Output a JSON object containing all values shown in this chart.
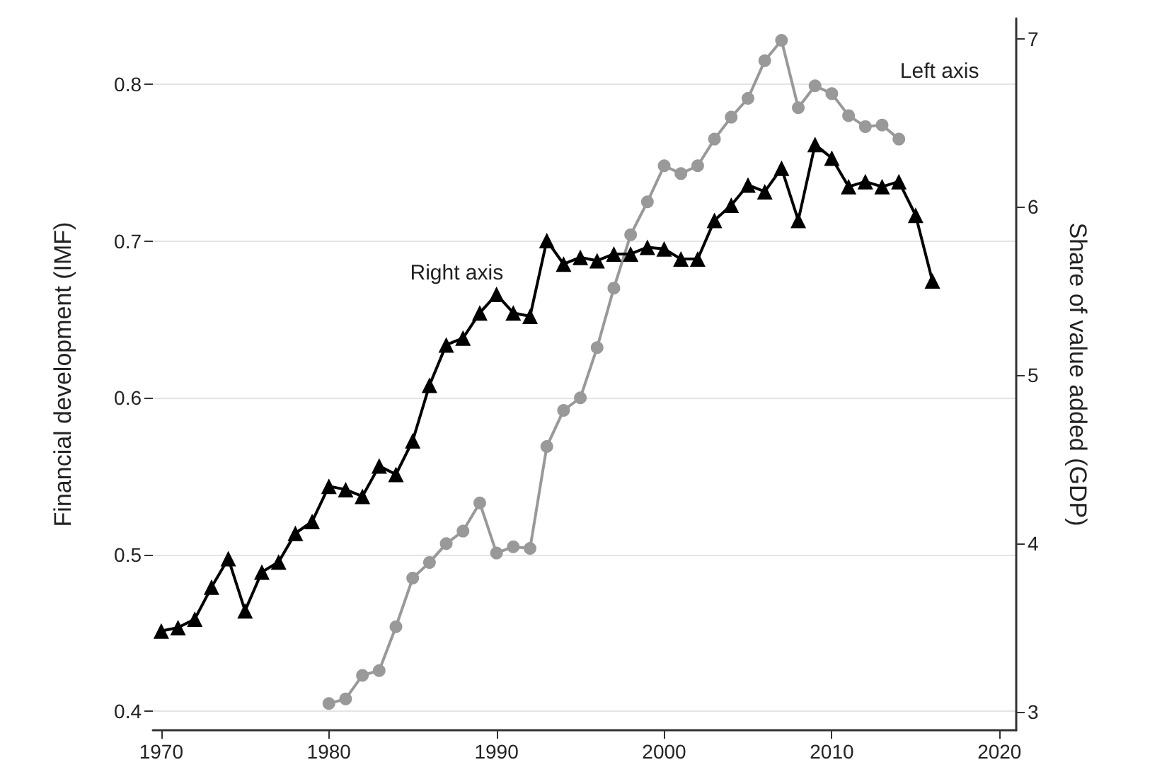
{
  "chart_data": {
    "type": "line",
    "ylabel": "Financial development (IMF)",
    "y2label": "Share of value added (GDP)",
    "annotations": [
      "Left axis",
      "Right axis"
    ],
    "xlim": [
      1969.5,
      2021
    ],
    "xticks": [
      1970,
      1980,
      1990,
      2000,
      2010,
      2020
    ],
    "ylim": [
      0.388,
      0.842
    ],
    "yticks": [
      0.4,
      0.5,
      0.6,
      0.7,
      0.8
    ],
    "y2lim": [
      2.89,
      7.12
    ],
    "y2ticks": [
      3,
      4,
      5,
      6,
      7
    ],
    "grid": "y",
    "series": [
      {
        "color": "#999999",
        "marker": "circle",
        "x": [
          1980,
          1981,
          1982,
          1983,
          1984,
          1985,
          1986,
          1987,
          1988,
          1989,
          1990,
          1991,
          1992,
          1993,
          1994,
          1995,
          1996,
          1997,
          1998,
          1999,
          2000,
          2001,
          2002,
          2003,
          2004,
          2005,
          2006,
          2007,
          2008,
          2009,
          2010,
          2011,
          2012,
          2013,
          2014
        ],
        "values": [
          0.405,
          0.408,
          0.423,
          0.426,
          0.454,
          0.485,
          0.495,
          0.507,
          0.515,
          0.533,
          0.501,
          0.505,
          0.504,
          0.569,
          0.592,
          0.6,
          0.632,
          0.67,
          0.704,
          0.725,
          0.748,
          0.743,
          0.748,
          0.765,
          0.779,
          0.791,
          0.815,
          0.828,
          0.785,
          0.799,
          0.794,
          0.78,
          0.773,
          0.774,
          0.765
        ]
      },
      {
        "color": "#000000",
        "marker": "triangle",
        "axis": "y2",
        "x": [
          1970,
          1971,
          1972,
          1973,
          1974,
          1975,
          1976,
          1977,
          1978,
          1979,
          1980,
          1981,
          1982,
          1983,
          1984,
          1985,
          1986,
          1987,
          1988,
          1989,
          1990,
          1991,
          1992,
          1993,
          1994,
          1995,
          1996,
          1997,
          1998,
          1999,
          2000,
          2001,
          2002,
          2003,
          2004,
          2005,
          2006,
          2007,
          2008,
          2009,
          2010,
          2011,
          2012,
          2013,
          2014,
          2015,
          2016
        ],
        "values": [
          3.48,
          3.5,
          3.55,
          3.74,
          3.91,
          3.6,
          3.83,
          3.89,
          4.06,
          4.13,
          4.34,
          4.32,
          4.28,
          4.46,
          4.41,
          4.61,
          4.94,
          5.18,
          5.22,
          5.37,
          5.48,
          5.37,
          5.35,
          5.8,
          5.66,
          5.7,
          5.68,
          5.72,
          5.72,
          5.76,
          5.75,
          5.69,
          5.69,
          5.92,
          6.01,
          6.13,
          6.09,
          6.23,
          5.92,
          6.37,
          6.29,
          6.12,
          6.15,
          6.12,
          6.15,
          5.95,
          5.56
        ]
      }
    ]
  }
}
